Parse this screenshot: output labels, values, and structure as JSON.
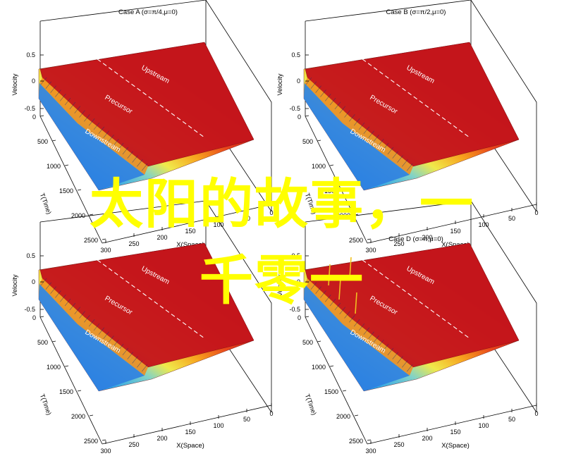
{
  "colors": {
    "warm": "#c4161c",
    "overlay_text": "#ffff00"
  },
  "overlay": {
    "line1": "太阳的故事，一",
    "line2": "千零一"
  },
  "chart_data": [
    {
      "type": "surface",
      "title": "Case A (σ=π/4,μ=0)",
      "zlabel": "Velocity",
      "ylabel": "T(Time)",
      "xlabel": "X(Space)",
      "z_ticks": [
        "0.5",
        "0",
        "-0.5"
      ],
      "t_ticks": [
        "0",
        "500",
        "1000",
        "1500",
        "2000",
        "2500"
      ],
      "x_ticks": [
        "300",
        "250",
        "200",
        "150",
        "100",
        "50",
        "0"
      ],
      "region_labels": [
        "Upstream",
        "Precursor",
        "Downstream"
      ]
    },
    {
      "type": "surface",
      "title": "Case B (σ=π/2,μ=0)",
      "zlabel": "Velocity",
      "ylabel": "T(Time)",
      "xlabel": "X(Space)",
      "z_ticks": [
        "0.5",
        "0",
        "-0.5"
      ],
      "t_ticks": [
        "0",
        "500",
        "1000",
        "1500",
        "2000",
        "2500"
      ],
      "x_ticks": [
        "300",
        "250",
        "200",
        "150",
        "100",
        "50",
        "0"
      ],
      "region_labels": [
        "Upstream",
        "Precursor",
        "Downstream"
      ]
    },
    {
      "type": "surface",
      "title": "",
      "zlabel": "Velocity",
      "ylabel": "T(Time)",
      "xlabel": "X(Space)",
      "z_ticks": [
        "0.5",
        "0",
        "-0.5"
      ],
      "t_ticks": [
        "0",
        "500",
        "1000",
        "1500",
        "2000",
        "2500"
      ],
      "x_ticks": [
        "300",
        "250",
        "200",
        "150",
        "100",
        "50",
        "0"
      ],
      "region_labels": [
        "Upstream",
        "Precursor",
        "Downstream"
      ]
    },
    {
      "type": "surface",
      "title": "Case D (σ=π,μ=0)",
      "zlabel": "Velocity",
      "ylabel": "T(Time)",
      "xlabel": "X(Space)",
      "z_ticks": [
        "0.5",
        "0",
        "-0.5"
      ],
      "t_ticks": [
        "0",
        "500",
        "1000",
        "1500",
        "2000",
        "2500"
      ],
      "x_ticks": [
        "300",
        "250",
        "200",
        "150",
        "100",
        "50",
        "0"
      ],
      "region_labels": [
        "Upstream",
        "Precursor",
        "Downstream"
      ]
    }
  ]
}
